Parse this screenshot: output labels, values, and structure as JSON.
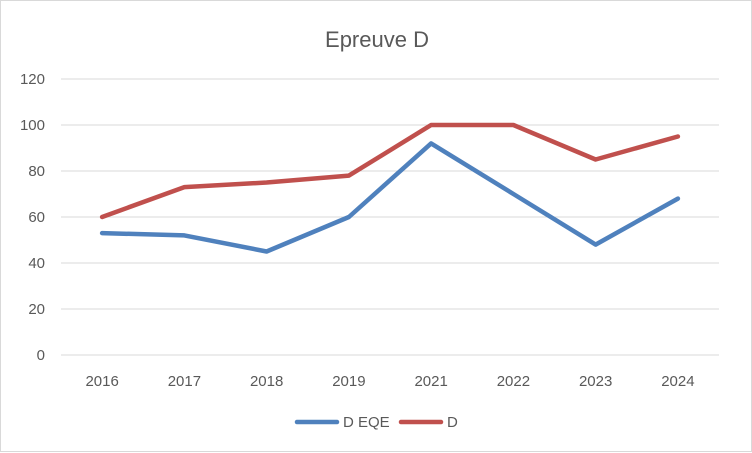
{
  "chart_data": {
    "type": "line",
    "title": "Epreuve D",
    "xlabel": "",
    "ylabel": "",
    "categories": [
      "2016",
      "2017",
      "2018",
      "2019",
      "2021",
      "2022",
      "2023",
      "2024"
    ],
    "series": [
      {
        "name": "D EQE",
        "color": "#4f81bd",
        "values": [
          53,
          52,
          45,
          60,
          92,
          70,
          48,
          68
        ]
      },
      {
        "name": "D",
        "color": "#c0504d",
        "values": [
          60,
          73,
          75,
          78,
          100,
          100,
          85,
          95
        ]
      }
    ],
    "ylim": [
      0,
      120
    ],
    "yticks": [
      "0",
      "20",
      "40",
      "60",
      "80",
      "100",
      "120"
    ],
    "grid": true,
    "legend": "bottom"
  }
}
